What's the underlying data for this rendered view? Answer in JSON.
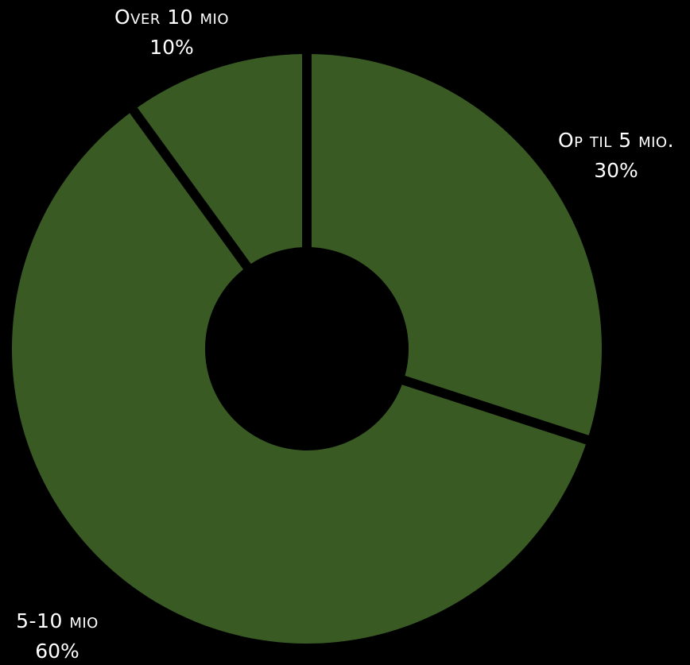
{
  "chart_data": {
    "type": "pie",
    "donut": true,
    "title": "",
    "background": "#000000",
    "slice_color": "#3a5a24",
    "separator_color": "#000000",
    "text_color": "#ffffff",
    "start_angle_deg": 0,
    "direction": "clockwise",
    "slices": [
      {
        "label": "Op til 5 mio.",
        "value": 30,
        "value_label": "30%"
      },
      {
        "label": "5-10 mio",
        "value": 60,
        "value_label": "60%"
      },
      {
        "label": "Over 10 mio",
        "value": 10,
        "value_label": "10%"
      }
    ]
  }
}
